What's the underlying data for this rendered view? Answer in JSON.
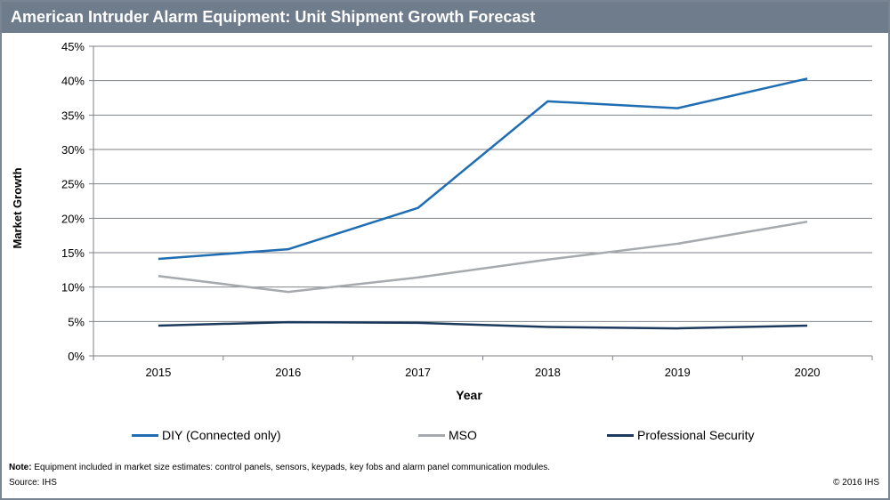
{
  "title": "American Intruder Alarm Equipment: Unit Shipment Growth Forecast",
  "chart_data": {
    "type": "line",
    "title": "American Intruder Alarm Equipment: Unit Shipment Growth Forecast",
    "xlabel": "Year",
    "ylabel": "Market Growth",
    "categories": [
      "2015",
      "2016",
      "2017",
      "2018",
      "2019",
      "2020"
    ],
    "yticks": [
      "0%",
      "5%",
      "10%",
      "15%",
      "20%",
      "25%",
      "30%",
      "35%",
      "40%",
      "45%"
    ],
    "ylim": [
      0,
      45
    ],
    "grid": true,
    "legend_position": "bottom",
    "series": [
      {
        "name": "DIY (Connected only)",
        "color": "#1f6db3",
        "values": [
          14.1,
          15.5,
          21.5,
          37.0,
          36.0,
          40.3
        ]
      },
      {
        "name": "MSO",
        "color": "#a6a9ad",
        "values": [
          11.6,
          9.3,
          11.4,
          14.0,
          16.3,
          19.5
        ]
      },
      {
        "name": "Professional Security",
        "color": "#1b3a5e",
        "values": [
          4.4,
          4.9,
          4.8,
          4.2,
          4.0,
          4.4
        ]
      }
    ]
  },
  "footer": {
    "note_label": "Note:",
    "note_text": " Equipment included in market size estimates: control panels, sensors, keypads, key fobs and alarm panel communication modules.",
    "source": "Source: IHS",
    "copyright": "© 2016 IHS"
  }
}
